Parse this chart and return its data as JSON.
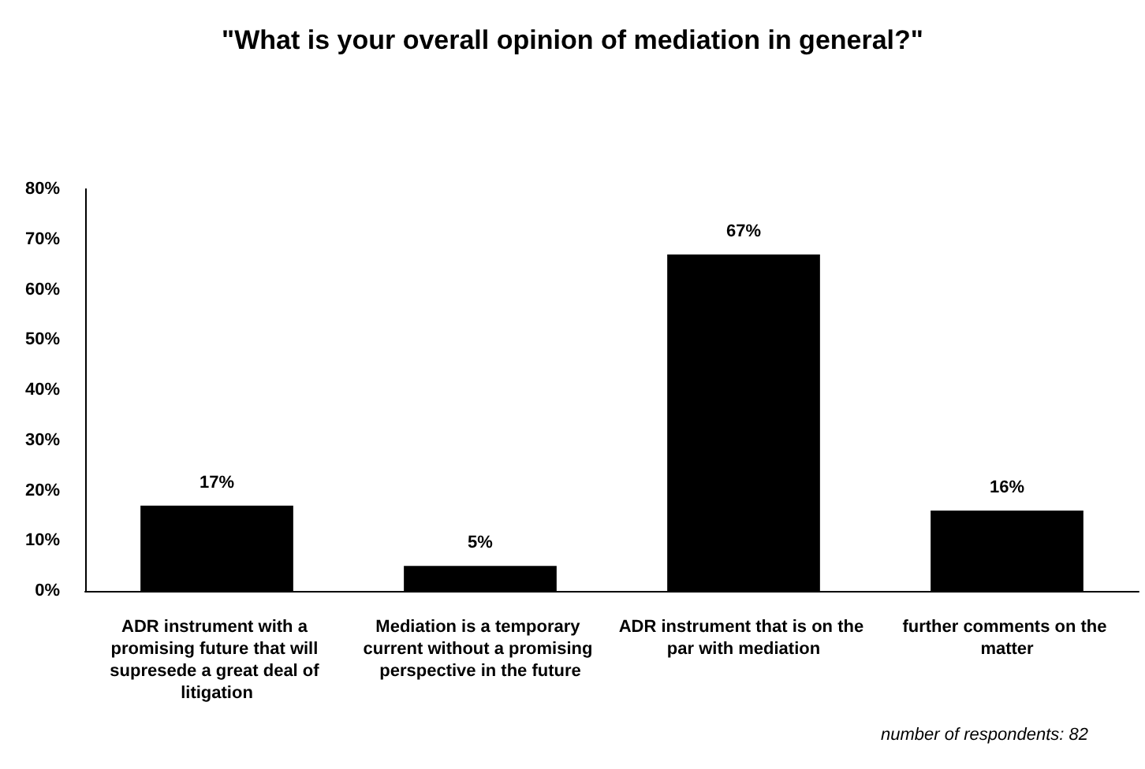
{
  "chart_data": {
    "type": "bar",
    "title": "\"What is your overall opinion of mediation in general?\"",
    "categories": [
      "ADR instrument with a promising future that will supresede a great deal of litigation",
      "Mediation is a temporary current without a promising perspective in the future",
      "ADR instrument that is on the par with mediation",
      "further comments on the matter"
    ],
    "values": [
      17,
      5,
      67,
      16
    ],
    "value_labels": [
      "17%",
      "5%",
      "67%",
      "16%"
    ],
    "color": "#000000",
    "ylim": [
      0,
      80
    ],
    "yticks": [
      {
        "value": 0,
        "label": "0%"
      },
      {
        "value": 10,
        "label": "10%"
      },
      {
        "value": 20,
        "label": "20%"
      },
      {
        "value": 30,
        "label": "30%"
      },
      {
        "value": 40,
        "label": "40%"
      },
      {
        "value": 50,
        "label": "50%"
      },
      {
        "value": 60,
        "label": "60%"
      },
      {
        "value": 70,
        "label": "70%"
      },
      {
        "value": 80,
        "label": "80%"
      }
    ],
    "annotations": [
      "number of respondents: 82"
    ]
  }
}
